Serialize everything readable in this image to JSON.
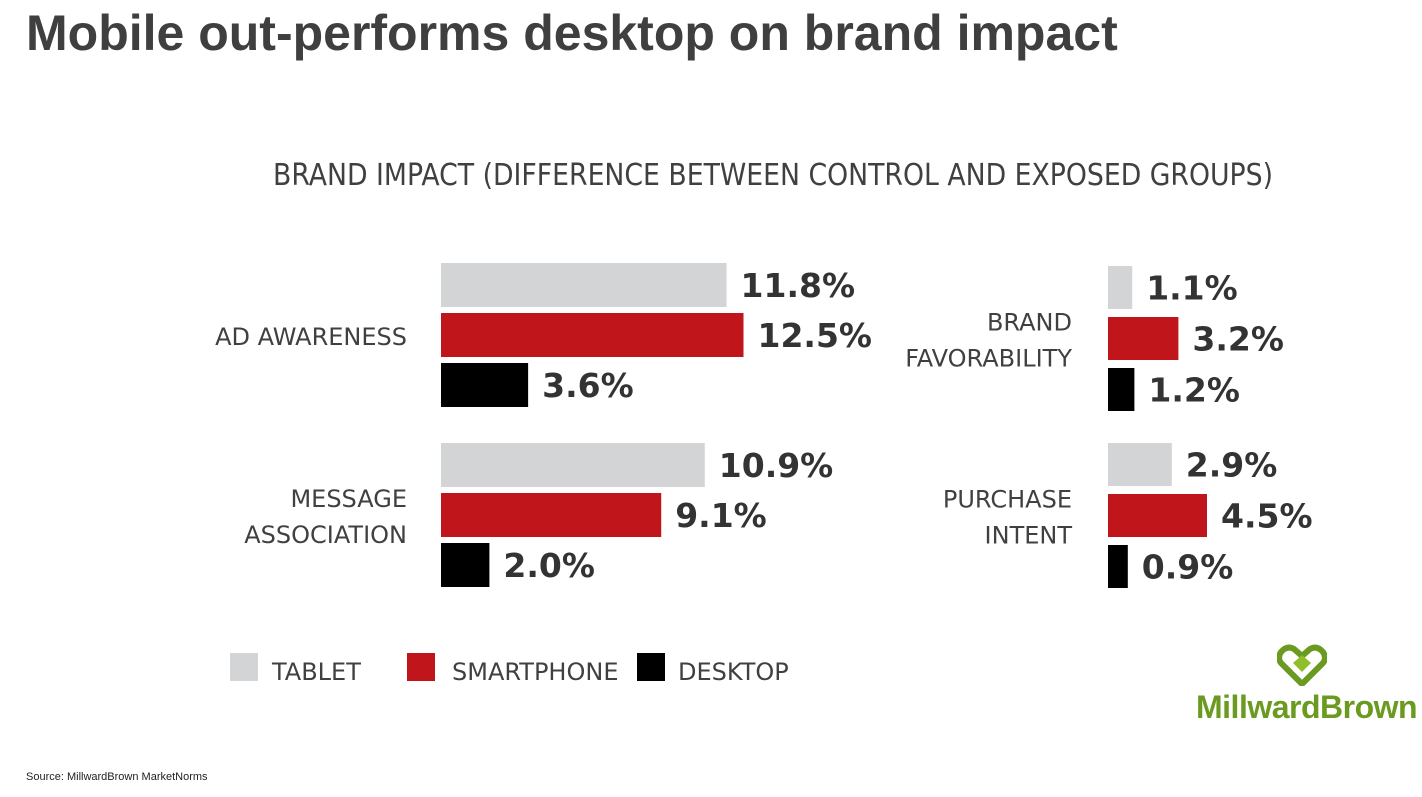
{
  "page": {
    "title": "Mobile out-performs desktop on brand impact",
    "source": "Source: MillwardBrown MarketNorms",
    "logo_text": "MillwardBrown"
  },
  "colors": {
    "tablet": "#d3d4d6",
    "smartphone": "#c0161b",
    "desktop": "#000000",
    "logo_green": "#6a9a1f"
  },
  "chart_data": {
    "type": "bar",
    "orientation": "horizontal",
    "title": "BRAND IMPACT (DIFFERENCE BETWEEN CONTROL AND EXPOSED GROUPS)",
    "unit": "%",
    "legend": [
      "TABLET",
      "SMARTPHONE",
      "DESKTOP"
    ],
    "legend_placement": "bottom-left",
    "grid": false,
    "groups": [
      {
        "label_lines": [
          "AD AWARENESS"
        ],
        "values": [
          11.8,
          12.5,
          3.6
        ],
        "labels": [
          "11.8%",
          "12.5%",
          "3.6%"
        ]
      },
      {
        "label_lines": [
          "MESSAGE",
          "ASSOCIATION"
        ],
        "values": [
          10.9,
          9.1,
          2.0
        ],
        "labels": [
          "10.9%",
          "9.1%",
          "2.0%"
        ]
      },
      {
        "label_lines": [
          "BRAND",
          "FAVORABILITY"
        ],
        "values": [
          1.1,
          3.2,
          1.2
        ],
        "labels": [
          "1.1%",
          "3.2%",
          "1.2%"
        ]
      },
      {
        "label_lines": [
          "PURCHASE",
          "INTENT"
        ],
        "values": [
          2.9,
          4.5,
          0.9
        ],
        "labels": [
          "2.9%",
          "4.5%",
          "0.9%"
        ]
      }
    ]
  }
}
